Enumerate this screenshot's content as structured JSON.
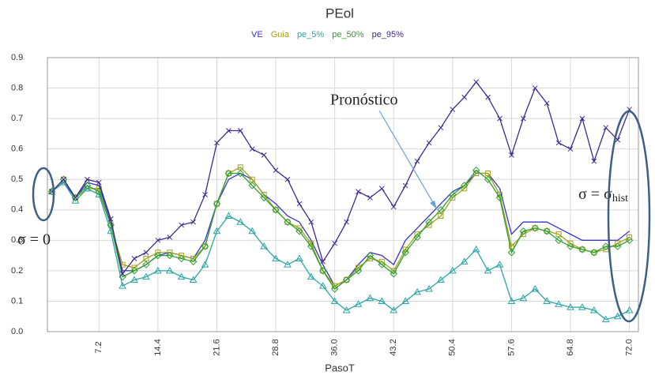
{
  "chart_data": {
    "type": "line",
    "title": "PEol",
    "x_label": "PasoT",
    "x": [
      1.44,
      2.88,
      4.32,
      5.76,
      7.2,
      8.64,
      10.08,
      11.52,
      12.96,
      14.4,
      15.84,
      17.28,
      18.72,
      20.16,
      21.6,
      23.04,
      24.48,
      25.92,
      27.36,
      28.8,
      30.24,
      31.68,
      33.12,
      34.56,
      36.0,
      37.44,
      38.88,
      40.32,
      41.76,
      43.2,
      44.64,
      46.08,
      47.52,
      48.96,
      50.4,
      51.84,
      53.28,
      54.72,
      56.16,
      57.6,
      59.04,
      60.48,
      61.92,
      63.36,
      64.8,
      66.24,
      67.68,
      69.12,
      70.56,
      72.0
    ],
    "series": [
      {
        "name": "VE",
        "color": "#3535d0",
        "values": [
          0.46,
          0.49,
          0.44,
          0.49,
          0.48,
          0.36,
          0.2,
          0.2,
          0.22,
          0.25,
          0.26,
          0.25,
          0.24,
          0.3,
          0.42,
          0.5,
          0.52,
          0.5,
          0.45,
          0.42,
          0.38,
          0.36,
          0.3,
          0.22,
          0.15,
          0.17,
          0.22,
          0.26,
          0.25,
          0.22,
          0.3,
          0.34,
          0.38,
          0.42,
          0.46,
          0.48,
          0.52,
          0.52,
          0.47,
          0.32,
          0.36,
          0.36,
          0.36,
          0.34,
          0.32,
          0.3,
          0.3,
          0.3,
          0.3,
          0.33
        ]
      },
      {
        "name": "Guia",
        "color": "#a3a020",
        "marker": "square",
        "values": [
          0.46,
          0.5,
          0.44,
          0.47,
          0.47,
          0.35,
          0.22,
          0.21,
          0.24,
          0.26,
          0.26,
          0.25,
          0.24,
          0.28,
          0.42,
          0.52,
          0.54,
          0.5,
          0.45,
          0.4,
          0.36,
          0.34,
          0.29,
          0.2,
          0.15,
          0.17,
          0.21,
          0.24,
          0.23,
          0.2,
          0.27,
          0.32,
          0.35,
          0.38,
          0.44,
          0.47,
          0.52,
          0.52,
          0.45,
          0.28,
          0.32,
          0.34,
          0.33,
          0.32,
          0.29,
          0.27,
          0.26,
          0.27,
          0.29,
          0.31
        ]
      },
      {
        "name": "pe_5%",
        "color": "#2aa5a5",
        "marker": "triangle",
        "values": [
          0.46,
          0.49,
          0.43,
          0.47,
          0.45,
          0.33,
          0.15,
          0.17,
          0.18,
          0.2,
          0.2,
          0.18,
          0.17,
          0.22,
          0.33,
          0.38,
          0.36,
          0.33,
          0.28,
          0.24,
          0.22,
          0.24,
          0.18,
          0.15,
          0.1,
          0.07,
          0.09,
          0.11,
          0.1,
          0.07,
          0.1,
          0.13,
          0.14,
          0.17,
          0.2,
          0.23,
          0.27,
          0.2,
          0.22,
          0.1,
          0.11,
          0.14,
          0.1,
          0.09,
          0.08,
          0.08,
          0.07,
          0.04,
          0.05,
          0.07
        ]
      },
      {
        "name": "pe_50%",
        "color": "#2f9e2f",
        "marker": "diamond",
        "values": [
          0.46,
          0.5,
          0.44,
          0.48,
          0.46,
          0.35,
          0.18,
          0.2,
          0.22,
          0.25,
          0.25,
          0.24,
          0.23,
          0.28,
          0.42,
          0.52,
          0.52,
          0.48,
          0.44,
          0.4,
          0.36,
          0.33,
          0.28,
          0.2,
          0.14,
          0.17,
          0.2,
          0.25,
          0.22,
          0.19,
          0.26,
          0.31,
          0.36,
          0.4,
          0.45,
          0.48,
          0.53,
          0.5,
          0.44,
          0.26,
          0.33,
          0.34,
          0.33,
          0.3,
          0.28,
          0.27,
          0.26,
          0.28,
          0.28,
          0.3
        ]
      },
      {
        "name": "pe_95%",
        "color": "#3e2a90",
        "marker": "x",
        "values": [
          0.46,
          0.5,
          0.44,
          0.5,
          0.49,
          0.37,
          0.19,
          0.24,
          0.26,
          0.3,
          0.31,
          0.35,
          0.36,
          0.45,
          0.62,
          0.66,
          0.66,
          0.6,
          0.58,
          0.53,
          0.5,
          0.42,
          0.36,
          0.23,
          0.29,
          0.36,
          0.46,
          0.44,
          0.47,
          0.41,
          0.48,
          0.56,
          0.62,
          0.67,
          0.73,
          0.77,
          0.82,
          0.77,
          0.7,
          0.58,
          0.7,
          0.8,
          0.75,
          0.62,
          0.6,
          0.7,
          0.56,
          0.67,
          0.63,
          0.73
        ]
      }
    ],
    "xlim": [
      0.9,
      73.1
    ],
    "xticks": [
      7.2,
      14.4,
      21.6,
      28.8,
      {
        "value": 36,
        "label": "36.0"
      },
      43.2,
      50.4,
      57.6,
      64.8,
      {
        "value": 72,
        "label": "72.0"
      }
    ],
    "ylim": [
      0,
      0.9
    ],
    "yticks": [
      {
        "value": 0,
        "label": "0.0"
      },
      0.1,
      0.2,
      0.3,
      0.4,
      0.5,
      0.6,
      0.7,
      0.8,
      0.9
    ],
    "grid": true,
    "annotations": {
      "forecast": "Pronóstico",
      "sigma_zero": "σ = 0",
      "sigma_hist": "σ = σ",
      "sigma_hist_sub": "hist"
    }
  }
}
